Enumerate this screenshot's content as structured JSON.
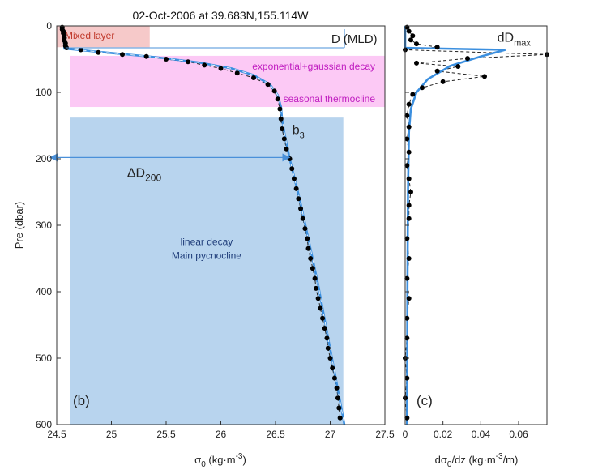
{
  "chart_data": [
    {
      "type": "line",
      "panel_label": "(b)",
      "title": "02-Oct-2006 at 39.683N,155.114W",
      "xlabel": "σ0 (kg·m-3)",
      "ylabel": "Pre (dbar)",
      "xlim": [
        24.5,
        27.5
      ],
      "ylim": [
        600,
        0
      ],
      "y_inverted": true,
      "xticks": [
        "24.5",
        "25",
        "25.5",
        "26",
        "26.5",
        "27",
        "27.5"
      ],
      "yticks": [
        "0",
        "100",
        "200",
        "300",
        "400",
        "500",
        "600"
      ],
      "regions": [
        {
          "label": "Mixed layer",
          "x": [
            24.5,
            25.35
          ],
          "y": [
            0,
            32
          ],
          "color": "#f6c9c9"
        },
        {
          "label": "exponential+gaussian decay",
          "x": [
            24.62,
            27.5
          ],
          "y": [
            45,
            122
          ],
          "color": "#fcc9f5",
          "label_color": "#c01ec0"
        },
        {
          "label": "linear decay",
          "label2": "Main pycnocline",
          "x": [
            24.62,
            27.12
          ],
          "y": [
            138,
            600
          ],
          "color": "#b8d4ee",
          "label_color": "#1f3d7a"
        }
      ],
      "annotations": {
        "mld_label": "D (MLD)",
        "mld_depth": 33,
        "b3_label": "b",
        "b3_sub": "3",
        "b3_point": [
          26.55,
          158
        ],
        "delta_label": "ΔD",
        "delta_sub": "200",
        "delta_depth": 198,
        "thermocline_label": "seasonal thermocline"
      },
      "series": [
        {
          "kind": "observed",
          "color": "#000000",
          "points": [
            [
              24.55,
              2
            ],
            [
              24.55,
              5
            ],
            [
              24.56,
              8
            ],
            [
              24.56,
              11
            ],
            [
              24.57,
              14
            ],
            [
              24.57,
              18
            ],
            [
              24.57,
              22
            ],
            [
              24.58,
              26
            ],
            [
              24.58,
              30
            ],
            [
              24.59,
              33
            ],
            [
              24.72,
              36
            ],
            [
              24.88,
              40
            ],
            [
              25.1,
              43
            ],
            [
              25.32,
              46
            ],
            [
              25.5,
              50
            ],
            [
              25.7,
              54
            ],
            [
              25.85,
              59
            ],
            [
              26.0,
              64
            ],
            [
              26.15,
              71
            ],
            [
              26.3,
              78
            ],
            [
              26.43,
              88
            ],
            [
              26.49,
              98
            ],
            [
              26.52,
              110
            ],
            [
              26.54,
              125
            ],
            [
              26.55,
              140
            ],
            [
              26.56,
              155
            ],
            [
              26.58,
              170
            ],
            [
              26.6,
              185
            ],
            [
              26.63,
              200
            ],
            [
              26.65,
              215
            ],
            [
              26.67,
              230
            ],
            [
              26.69,
              245
            ],
            [
              26.71,
              260
            ],
            [
              26.73,
              275
            ],
            [
              26.75,
              290
            ],
            [
              26.77,
              305
            ],
            [
              26.79,
              320
            ],
            [
              26.8,
              335
            ],
            [
              26.82,
              350
            ],
            [
              26.84,
              365
            ],
            [
              26.86,
              380
            ],
            [
              26.87,
              395
            ],
            [
              26.89,
              410
            ],
            [
              26.91,
              425
            ],
            [
              26.93,
              440
            ],
            [
              26.95,
              455
            ],
            [
              26.97,
              470
            ],
            [
              26.98,
              485
            ],
            [
              27.0,
              500
            ],
            [
              27.02,
              515
            ],
            [
              27.04,
              530
            ],
            [
              27.06,
              545
            ],
            [
              27.07,
              560
            ],
            [
              27.08,
              575
            ],
            [
              27.09,
              590
            ]
          ]
        },
        {
          "kind": "fit",
          "color": "#3b8fdf",
          "points": [
            [
              24.56,
              0
            ],
            [
              24.57,
              34
            ],
            [
              24.95,
              40
            ],
            [
              25.4,
              47
            ],
            [
              25.8,
              55
            ],
            [
              26.1,
              64
            ],
            [
              26.3,
              74
            ],
            [
              26.45,
              88
            ],
            [
              26.52,
              104
            ],
            [
              26.55,
              122
            ],
            [
              26.56,
              140
            ],
            [
              26.58,
              160
            ],
            [
              26.63,
              200
            ],
            [
              26.72,
              260
            ],
            [
              26.8,
              320
            ],
            [
              26.89,
              390
            ],
            [
              26.97,
              460
            ],
            [
              27.05,
              530
            ],
            [
              27.13,
              600
            ]
          ]
        }
      ]
    },
    {
      "type": "line",
      "panel_label": "(c)",
      "title": "",
      "xlabel": "dσ0/dz (kg·m-3/m)",
      "ylabel": "",
      "xlim": [
        0,
        0.075
      ],
      "ylim": [
        600,
        0
      ],
      "y_inverted": true,
      "xticks": [
        "0",
        "0.02",
        "0.04",
        "0.06"
      ],
      "annotations": {
        "peak_label": "dD",
        "peak_sub": "max",
        "peak_point": [
          0.053,
          36
        ]
      },
      "series": [
        {
          "kind": "observed",
          "color": "#000000",
          "points": [
            [
              0.001,
              2
            ],
            [
              0.002,
              8
            ],
            [
              0.004,
              15
            ],
            [
              0.003,
              21
            ],
            [
              0.006,
              27
            ],
            [
              0.017,
              32
            ],
            [
              0.0,
              36
            ],
            [
              0.075,
              43
            ],
            [
              0.033,
              49
            ],
            [
              0.006,
              56
            ],
            [
              0.028,
              61
            ],
            [
              0.017,
              68
            ],
            [
              0.042,
              76
            ],
            [
              0.02,
              84
            ],
            [
              0.009,
              93
            ],
            [
              0.004,
              103
            ],
            [
              0.002,
              118
            ],
            [
              0.001,
              135
            ],
            [
              0.002,
              152
            ],
            [
              0.001,
              170
            ],
            [
              0.002,
              190
            ],
            [
              0.001,
              210
            ],
            [
              0.002,
              230
            ],
            [
              0.003,
              250
            ],
            [
              0.002,
              270
            ],
            [
              0.002,
              290
            ],
            [
              0.001,
              320
            ],
            [
              0.002,
              350
            ],
            [
              0.001,
              380
            ],
            [
              0.002,
              410
            ],
            [
              0.001,
              440
            ],
            [
              0.001,
              470
            ],
            [
              0.0,
              500
            ],
            [
              0.001,
              530
            ],
            [
              0.0,
              560
            ],
            [
              0.001,
              590
            ]
          ]
        },
        {
          "kind": "fit",
          "color": "#3b8fdf",
          "points": [
            [
              0.0,
              0
            ],
            [
              0.0,
              33
            ],
            [
              0.053,
              36
            ],
            [
              0.04,
              46
            ],
            [
              0.024,
              60
            ],
            [
              0.012,
              80
            ],
            [
              0.006,
              100
            ],
            [
              0.003,
              125
            ],
            [
              0.002,
              160
            ],
            [
              0.0015,
              250
            ],
            [
              0.0012,
              400
            ],
            [
              0.001,
              600
            ]
          ]
        }
      ]
    }
  ]
}
